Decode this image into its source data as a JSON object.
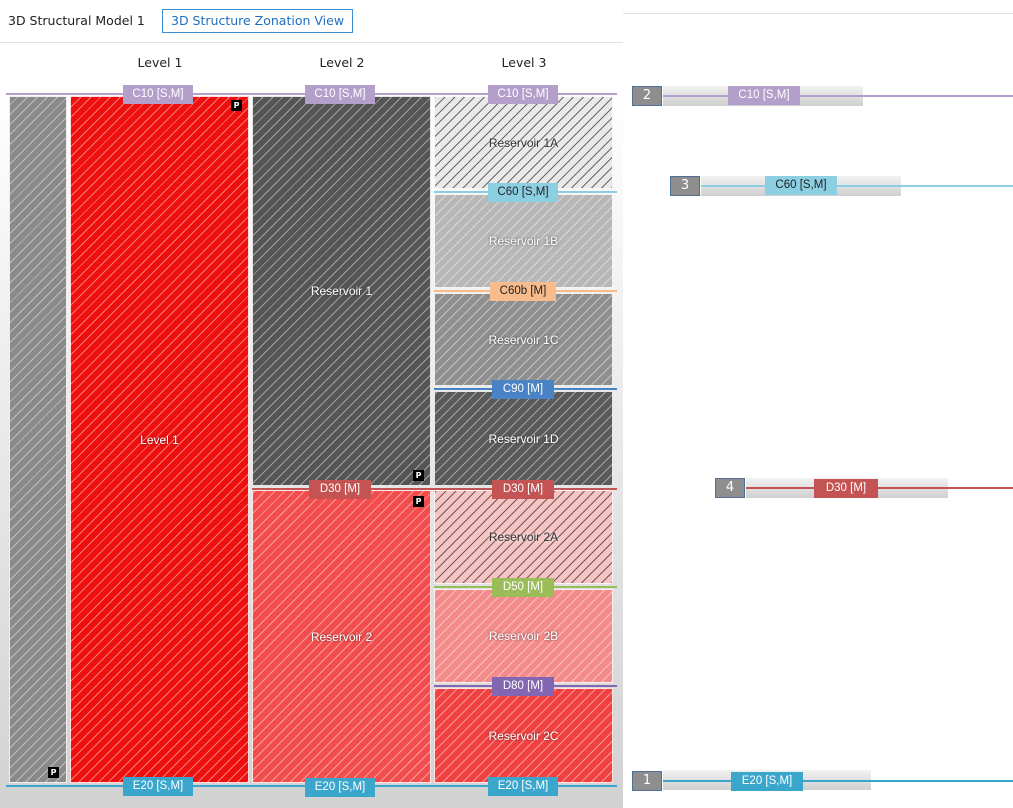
{
  "tabs": {
    "model": "3D Structural Model 1",
    "zonation": "3D Structure Zonation View"
  },
  "levels": [
    "Level 1",
    "Level 2",
    "Level 3"
  ],
  "colors": {
    "C10": "#b49fcb",
    "C60": "#8ccfe3",
    "C60b": "#f8bc8c",
    "C90": "#4a82c6",
    "D30": "#c45353",
    "D50": "#9bbd58",
    "D80": "#8266b2",
    "E20": "#3ba6cc"
  },
  "zones": {
    "outer": "",
    "level1": "Level 1",
    "reservoir1": "Reservoir 1",
    "reservoir2": "Reservoir 2",
    "reservoir1a": "Reservoir 1A",
    "reservoir1b": "Reservoir 1B",
    "reservoir1c": "Reservoir 1C",
    "reservoir1d": "Reservoir 1D",
    "reservoir2a": "Reservoir 2A",
    "reservoir2b": "Reservoir 2B",
    "reservoir2c": "Reservoir 2C"
  },
  "p_badge": "P",
  "horizons": {
    "c10": "C10 [S,M]",
    "c60": "C60 [S,M]",
    "c60b": "C60b [M]",
    "c90": "C90 [M]",
    "d30": "D30 [M]",
    "d50": "D50 [M]",
    "d80": "D80 [M]",
    "e20": "E20 [S,M]"
  },
  "stack": {
    "c10_num": "2",
    "c60_num": "3",
    "d30_num": "4",
    "e20_num": "1"
  }
}
